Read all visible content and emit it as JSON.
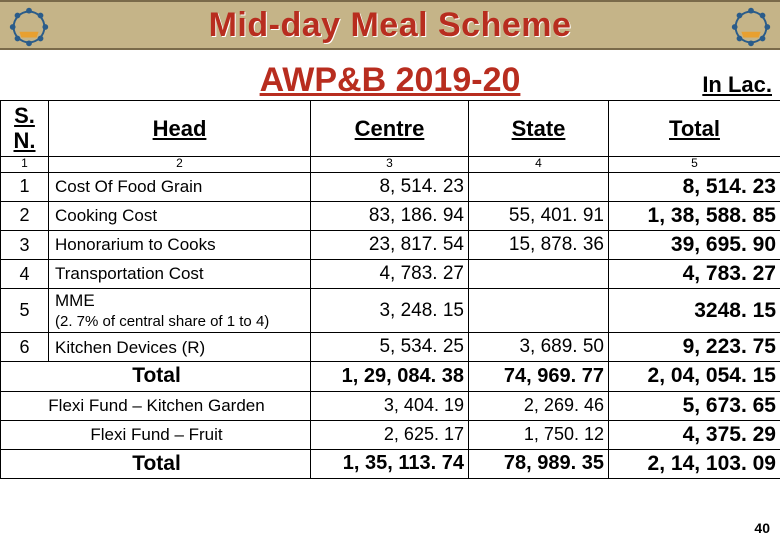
{
  "header": {
    "title": "Mid-day Meal Scheme",
    "subtitle": "AWP&B 2019-20",
    "unit_label": "In Lac."
  },
  "colors": {
    "header_bg": "#c5b488",
    "title_color": "#b82d1f",
    "border": "#000000",
    "background": "#ffffff"
  },
  "table": {
    "columns": [
      "S. N.",
      "Head",
      "Centre",
      "State",
      "Total"
    ],
    "column_numbers": [
      "1",
      "2",
      "3",
      "4",
      "5"
    ],
    "rows": [
      {
        "sn": "1",
        "head": "Cost Of Food Grain",
        "centre": "8, 514. 23",
        "state": "",
        "total": "8, 514. 23"
      },
      {
        "sn": "2",
        "head": "Cooking Cost",
        "centre": "83, 186. 94",
        "state": "55, 401. 91",
        "total": "1, 38, 588. 85"
      },
      {
        "sn": "3",
        "head": "Honorarium to Cooks",
        "centre": "23, 817. 54",
        "state": "15, 878. 36",
        "total": "39, 695. 90"
      },
      {
        "sn": "4",
        "head": "Transportation Cost",
        "centre": "4, 783. 27",
        "state": "",
        "total": "4, 783. 27"
      },
      {
        "sn": "5",
        "head": "MME\n(2. 7% of central share of 1 to 4)",
        "centre": "3, 248. 15",
        "state": "",
        "total": "3248. 15"
      },
      {
        "sn": "6",
        "head": "Kitchen Devices (R)",
        "centre": "5, 534. 25",
        "state": "3, 689. 50",
        "total": "9, 223. 75"
      }
    ],
    "subtotal": {
      "label": "Total",
      "centre": "1, 29, 084. 38",
      "state": "74, 969. 77",
      "total": "2, 04, 054. 15"
    },
    "flexi": [
      {
        "label": "Flexi Fund – Kitchen Garden",
        "centre": "3, 404. 19",
        "state": "2, 269. 46",
        "total": "5, 673. 65"
      },
      {
        "label": "Flexi Fund – Fruit",
        "centre": "2, 625. 17",
        "state": "1, 750. 12",
        "total": "4, 375. 29"
      }
    ],
    "grand_total": {
      "label": "Total",
      "centre": "1, 35, 113. 74",
      "state": "78, 989. 35",
      "total": "2, 14, 103. 09"
    }
  },
  "typography": {
    "title_fontsize": 34,
    "subtitle_fontsize": 34,
    "header_fontsize": 22,
    "body_fontsize": 17,
    "total_fontsize": 21
  },
  "slide_number": "40"
}
